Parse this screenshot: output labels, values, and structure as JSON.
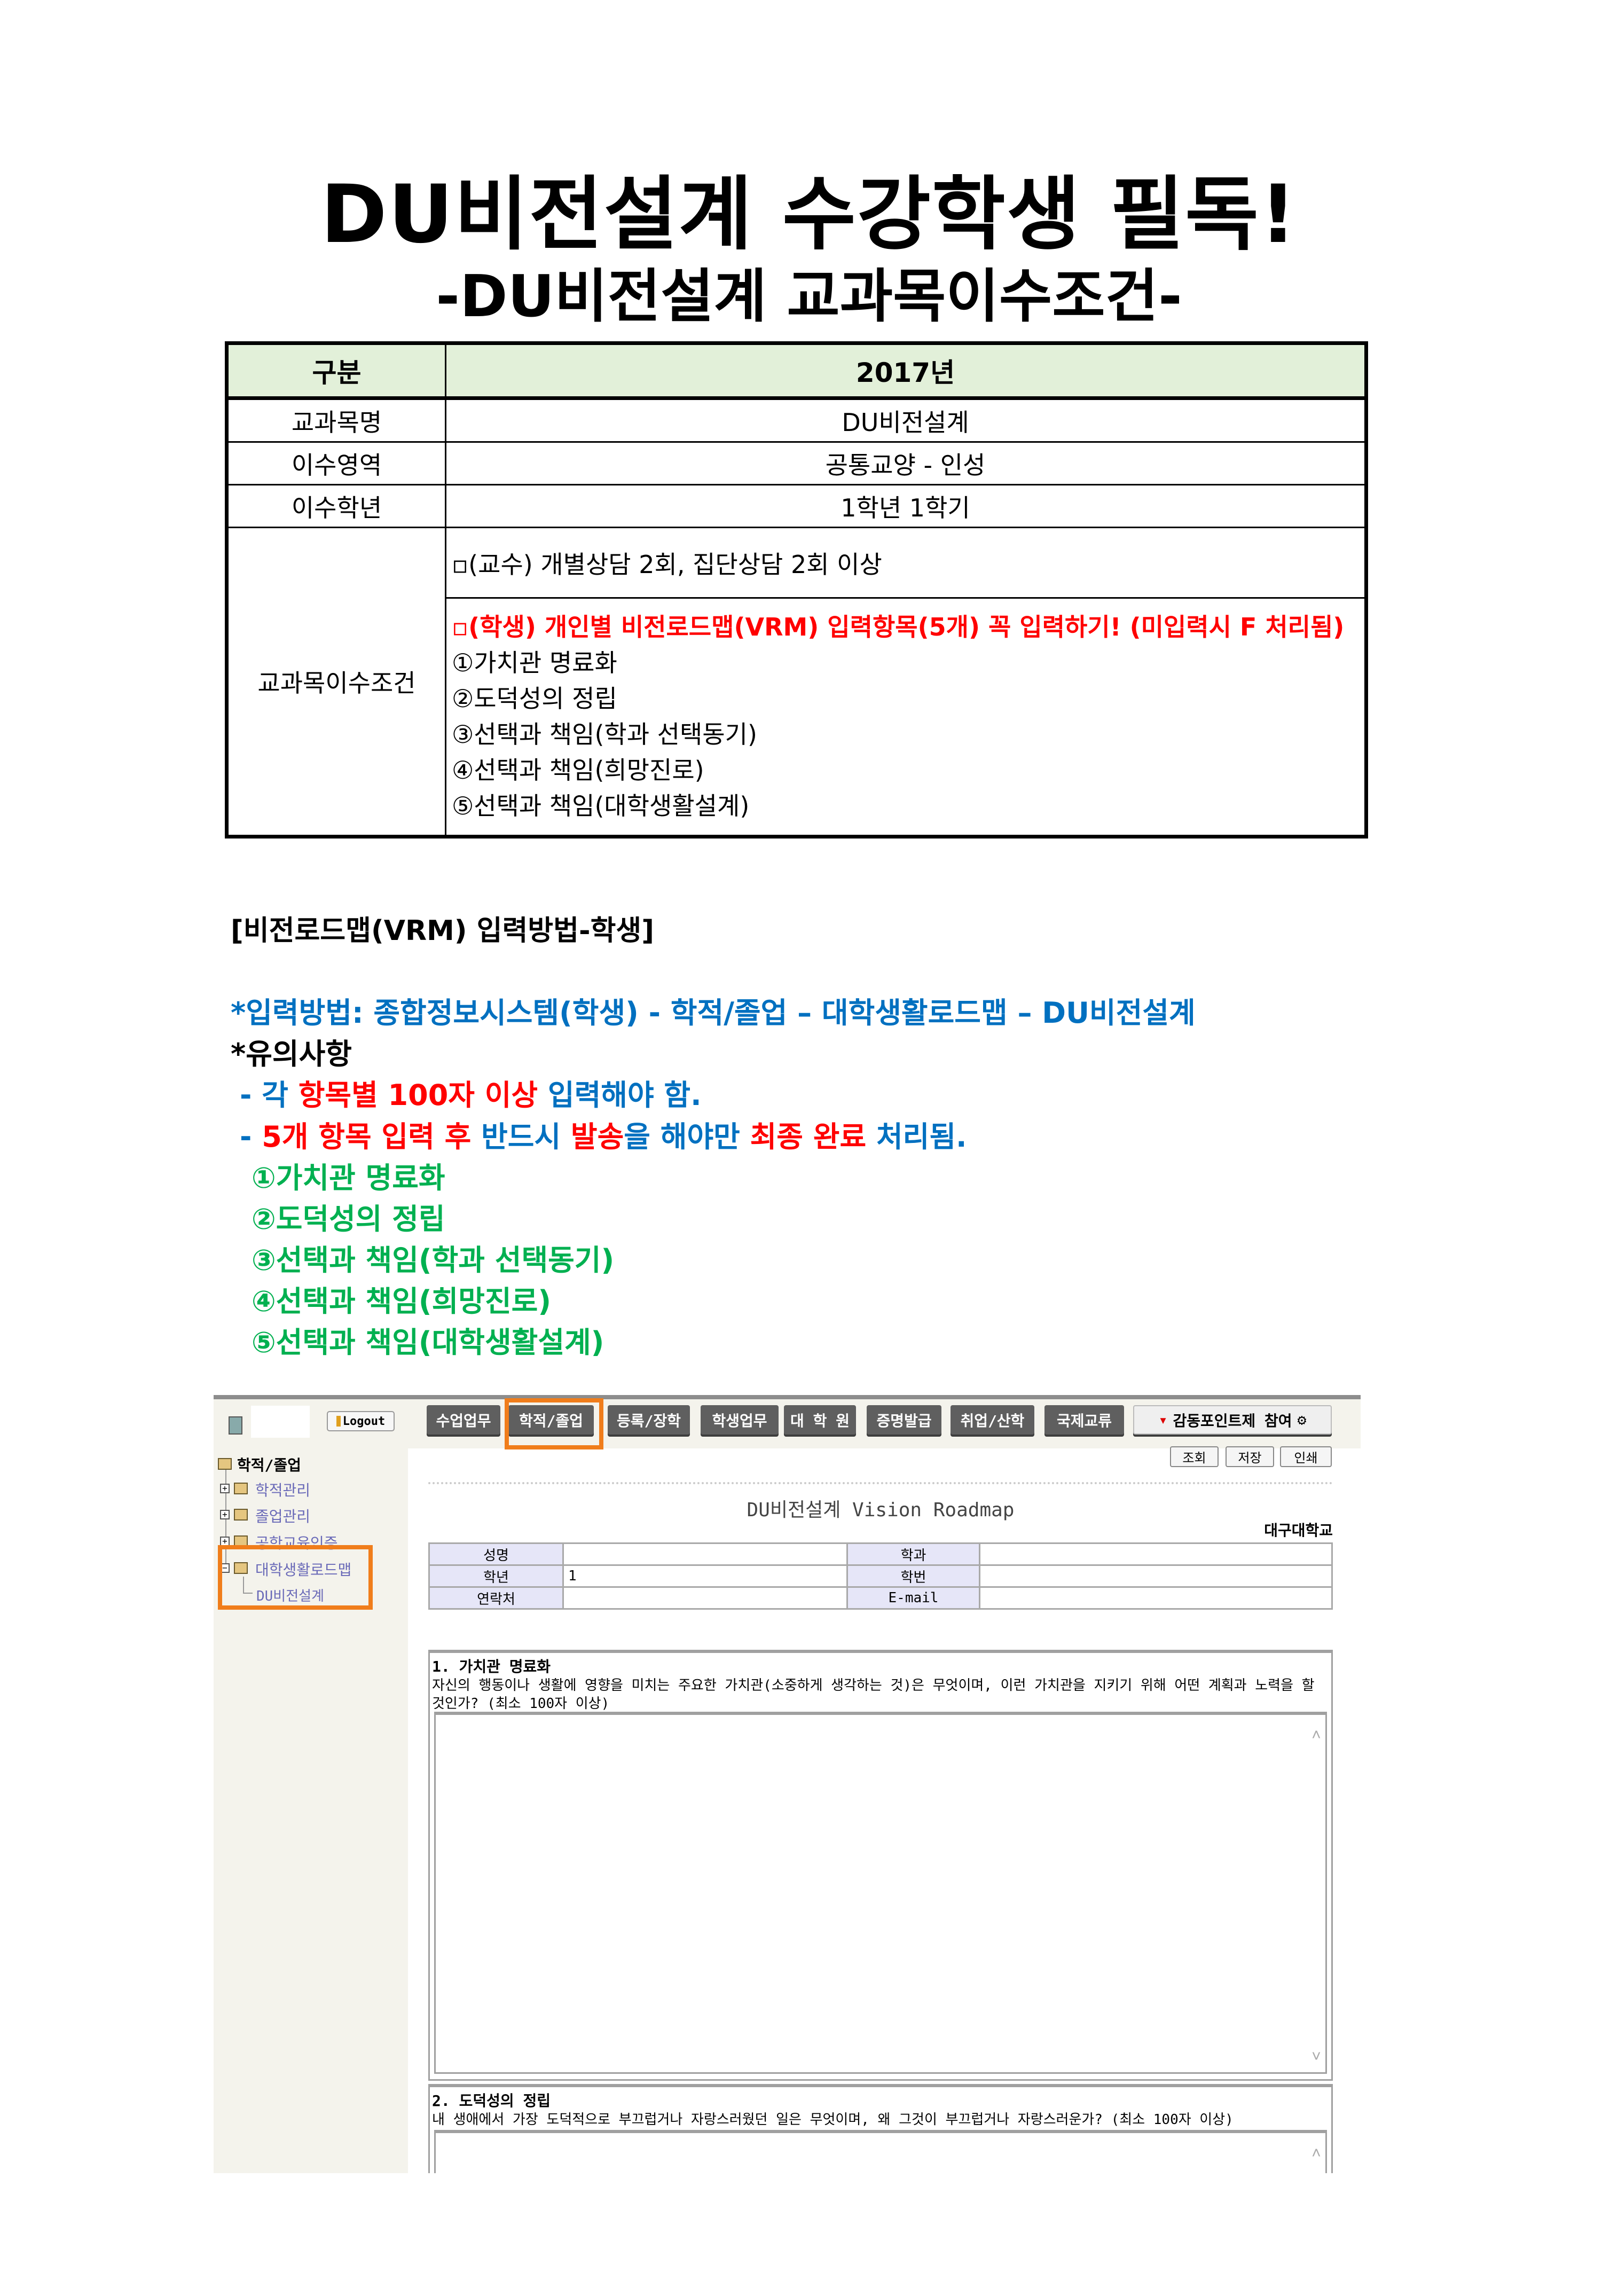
{
  "title": "DU비전설계 수강학생 필독!",
  "subtitle": "-DU비전설계 교과목이수조건-",
  "requirements_table": {
    "header": [
      "구분",
      "2017년"
    ],
    "rows": [
      {
        "label": "교과목명",
        "value": "DU비전설계"
      },
      {
        "label": "이수영역",
        "value": "공통교양 - 인성"
      },
      {
        "label": "이수학년",
        "value": "1학년 1학기"
      }
    ],
    "condition_label": "교과목이수조건",
    "professor_condition": "▫(교수) 개별상담 2회, 집단상담 2회 이상",
    "student_condition": "▫(학생) 개인별 비전로드맵(VRM) 입력항목(5개) 꼭 입력하기! (미입력시 F 처리됨)",
    "items": [
      "①가치관 명료화",
      "②도덕성의 정립",
      "③선택과 책임(학과 선택동기)",
      "④선택과 책임(희망진로)",
      "⑤선택과 책임(대학생활설계)"
    ]
  },
  "instructions": {
    "heading": "[비전로드맵(VRM) 입력방법-학생]",
    "method": "*입력방법: 종합정보시스템(학생) - 학적/졸업 – 대학생활로드맵 – DU비전설계",
    "notes_heading": "*유의사항",
    "note1": [
      "- 각 ",
      "항목별 100자 이상",
      " 입력해야 함."
    ],
    "note2": [
      "- ",
      "5개 항목 입력 후",
      " 반드시 ",
      "발송",
      "을 해야만 ",
      "최종 완료",
      " 처리됨."
    ],
    "items": [
      "①가치관 명료화",
      "②도덕성의 정립",
      "③선택과 책임(학과 선택동기)",
      "④선택과 책임(희망진로)",
      "⑤선택과 책임(대학생활설계)"
    ]
  },
  "colors": {
    "red": "#ff0000",
    "blue": "#0070c0",
    "green": "#00b050",
    "highlight": "#f07d1b",
    "header_bg": "#e2f0d9"
  },
  "screenshot": {
    "logout_label": "Logout",
    "nav": [
      "수업업무",
      "학적/졸업",
      "등록/장학",
      "학생업무",
      "대 학 원",
      "증명발급",
      "취업/산학",
      "국제교류",
      "감동포인트제 참여"
    ],
    "sidebar": {
      "root": "학적/졸업",
      "items": [
        "학적관리",
        "졸업관리",
        "공학교육인증",
        "대학생활로드맵"
      ],
      "leaf": "DU비전설계"
    },
    "actions": [
      "조회",
      "저장",
      "인쇄"
    ],
    "page_title": "DU비전설계 Vision Roadmap",
    "university": "대구대학교",
    "info": {
      "rows": [
        {
          "l1": "성명",
          "v1": "",
          "l2": "학과",
          "v2": ""
        },
        {
          "l1": "학년",
          "v1": "1",
          "l2": "학번",
          "v2": ""
        },
        {
          "l1": "연락처",
          "v1": "",
          "l2": "E-mail",
          "v2": ""
        }
      ]
    },
    "sections": [
      {
        "title": "1. 가치관 명료화",
        "desc": "자신의 행동이나 생활에 영향을 미치는 주요한 가치관(소중하게 생각하는 것)은 무엇이며, 이런 가치관을 지키기 위해 어떤 계획과 노력을 할 것인가? (최소 100자 이상)",
        "value": ""
      },
      {
        "title": "2. 도덕성의 정립",
        "desc": "내 생애에서 가장 도덕적으로 부끄럽거나 자랑스러웠던 일은 무엇이며, 왜 그것이 부끄럽거나 자랑스러운가? (최소 100자 이상)",
        "value": ""
      }
    ]
  }
}
